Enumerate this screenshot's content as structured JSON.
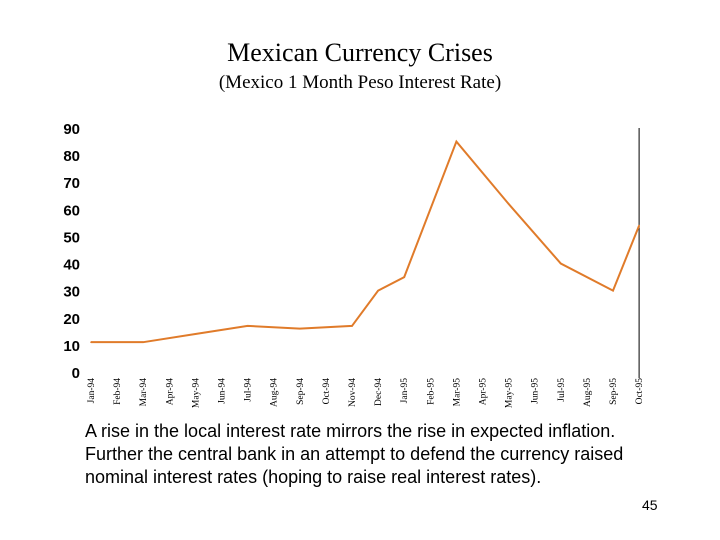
{
  "slide": {
    "caption": "A rise in the local interest rate mirrors the rise in expected inflation. Further the central bank in an attempt to defend the currency raised nominal interest rates (hoping to raise real interest rates).",
    "page_number": "45"
  },
  "chart_data": {
    "type": "line",
    "title": "Mexican Currency Crises",
    "subtitle": "(Mexico 1 Month Peso Interest Rate)",
    "xlabel": "",
    "ylabel": "",
    "ylim": [
      0,
      90
    ],
    "yticks": [
      0,
      10,
      20,
      30,
      40,
      50,
      60,
      70,
      80,
      90
    ],
    "grid": false,
    "legend": "none",
    "line_color": "#e07b2a",
    "categories": [
      "Jan-94",
      "Feb-94",
      "Mar-94",
      "Apr-94",
      "May-94",
      "Jun-94",
      "Jul-94",
      "Aug-94",
      "Sep-94",
      "Oct-94",
      "Nov-94",
      "Dec-94",
      "Jan-95",
      "Feb-95",
      "Mar-95",
      "Apr-95",
      "May-95",
      "Jun-95",
      "Jul-95",
      "Aug-95",
      "Sep-95",
      "Oct-95"
    ],
    "series": [
      {
        "name": "Mexico 1 Month Peso Interest Rate",
        "points": [
          {
            "x": 0,
            "y": 11
          },
          {
            "x": 2,
            "y": 11
          },
          {
            "x": 4,
            "y": 14
          },
          {
            "x": 6,
            "y": 17
          },
          {
            "x": 8,
            "y": 16
          },
          {
            "x": 10,
            "y": 17
          },
          {
            "x": 11,
            "y": 30
          },
          {
            "x": 12,
            "y": 35
          },
          {
            "x": 14,
            "y": 85
          },
          {
            "x": 16,
            "y": 62
          },
          {
            "x": 18,
            "y": 40
          },
          {
            "x": 20,
            "y": 30
          },
          {
            "x": 21,
            "y": 54
          }
        ]
      }
    ]
  }
}
